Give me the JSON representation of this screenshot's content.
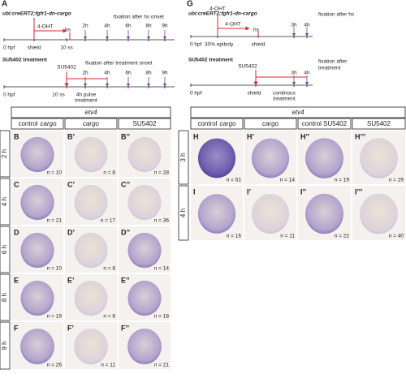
{
  "panel_a": {
    "label": "A",
    "hs_timeline": {
      "title": "ubi:creERT2;fgfr1-dn-cargo",
      "labels": [
        "4-OHT",
        "hs",
        "fixation after hs onset",
        "2h",
        "4h",
        "6h",
        "8h",
        "9h",
        "0 hpf",
        "shield",
        "10 ss"
      ]
    },
    "su_timeline": {
      "title": "SU5402 treatment",
      "labels": [
        "SU5402",
        "fixation after treatment onset",
        "2h",
        "4h",
        "6h",
        "8h",
        "9h",
        "0 hpf",
        "10 ss",
        "4h pulse",
        "treatment"
      ]
    }
  },
  "panel_g": {
    "label": "G",
    "hs_timeline": {
      "title": "ubi:creERT2;fgfr1-dn-cargo",
      "labels": [
        "4-OHT",
        "4-OHT",
        "hs",
        "fixation after hs",
        "3h",
        "4h",
        "0 hpf",
        "30% epiboly",
        "shield"
      ]
    },
    "su_timeline": {
      "title": "SU5402 treatment",
      "labels": [
        "SU5402",
        "fixation after",
        "treatment",
        "3h",
        "4h",
        "0 hpf",
        "shield",
        "continous",
        "treatment"
      ]
    }
  },
  "left_grid": {
    "gene": "etv4",
    "columns": [
      {
        "plain": "control",
        "italic": "cargo"
      },
      {
        "italic": "cargo"
      },
      {
        "plain": "SU5402"
      }
    ],
    "rows": [
      {
        "label": "2 h",
        "cells": [
          {
            "panel": "B",
            "n": "n = 10"
          },
          {
            "panel": "B’",
            "n": "n = 8"
          },
          {
            "panel": "B’’",
            "n": "n = 28"
          }
        ]
      },
      {
        "label": "4 h",
        "cells": [
          {
            "panel": "C",
            "n": "n = 21"
          },
          {
            "panel": "C’",
            "n": "n = 17"
          },
          {
            "panel": "C’’",
            "n": "n = 36"
          }
        ]
      },
      {
        "label": "6 h",
        "cells": [
          {
            "panel": "D",
            "n": "n = 10"
          },
          {
            "panel": "D’",
            "n": "n = 8"
          },
          {
            "panel": "D’’",
            "n": "n = 14"
          }
        ]
      },
      {
        "label": "8 h",
        "cells": [
          {
            "panel": "E",
            "n": "n = 19"
          },
          {
            "panel": "E’",
            "n": "n = 8"
          },
          {
            "panel": "E’’",
            "n": "n = 18"
          }
        ]
      },
      {
        "label": "9 h",
        "cells": [
          {
            "panel": "F",
            "n": "n = 26"
          },
          {
            "panel": "F’",
            "n": "n = 11"
          },
          {
            "panel": "F’’",
            "n": "n = 21"
          }
        ]
      }
    ]
  },
  "right_grid": {
    "gene": "etv4",
    "columns": [
      {
        "plain": "control",
        "italic": "cargo"
      },
      {
        "italic": "cargo"
      },
      {
        "plain": "control SU5402"
      },
      {
        "plain": "SU5402"
      }
    ],
    "rows": [
      {
        "label": "3 h",
        "cells": [
          {
            "panel": "H",
            "n": "n = 51"
          },
          {
            "panel": "H’",
            "n": "n = 14"
          },
          {
            "panel": "H’’",
            "n": "n = 19"
          },
          {
            "panel": "H’’’",
            "n": "n = 29"
          }
        ]
      },
      {
        "label": "4 h",
        "cells": [
          {
            "panel": "I",
            "n": "n = 16"
          },
          {
            "panel": "I’",
            "n": "n = 11"
          },
          {
            "panel": "I’’",
            "n": "n = 22"
          },
          {
            "panel": "I’’’",
            "n": "n = 40"
          }
        ]
      }
    ]
  }
}
